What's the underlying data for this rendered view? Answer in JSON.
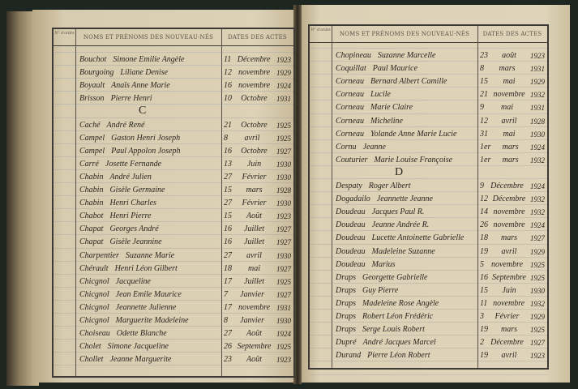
{
  "header": {
    "no_col": "N° d'ordre",
    "names_col": "NOMS ET PRÉNOMS DES NOUVEAU-NÉS",
    "dates_col": "DATES DES ACTES"
  },
  "left_page": {
    "entries": [
      {
        "surname": "Bouchot",
        "given": "Simone Emilie Angèle",
        "day": "11",
        "month": "Décembre",
        "year": "1923"
      },
      {
        "surname": "Bourgoing",
        "given": "Liliane Denise",
        "day": "12",
        "month": "novembre",
        "year": "1929"
      },
      {
        "surname": "Boyault",
        "given": "Anaïs Anne Marie",
        "day": "16",
        "month": "novembre",
        "year": "1924"
      },
      {
        "surname": "Brisson",
        "given": "Pierre Henri",
        "day": "10",
        "month": "Octobre",
        "year": "1931"
      },
      {
        "letter": "C"
      },
      {
        "surname": "Caché",
        "given": "André René",
        "day": "21",
        "month": "Octobre",
        "year": "1925"
      },
      {
        "surname": "Campel",
        "given": "Gaston Henri Joseph",
        "day": "8",
        "month": "avril",
        "year": "1925"
      },
      {
        "surname": "Campel",
        "given": "Paul Appolon Joseph",
        "day": "16",
        "month": "Octobre",
        "year": "1927"
      },
      {
        "surname": "Carré",
        "given": "Josette Fernande",
        "day": "13",
        "month": "Juin",
        "year": "1930"
      },
      {
        "surname": "Chabin",
        "given": "André Julien",
        "day": "27",
        "month": "Février",
        "year": "1930"
      },
      {
        "surname": "Chabin",
        "given": "Gisèle Germaine",
        "day": "15",
        "month": "mars",
        "year": "1928"
      },
      {
        "surname": "Chabin",
        "given": "Henri Charles",
        "day": "27",
        "month": "Février",
        "year": "1930"
      },
      {
        "surname": "Chabot",
        "given": "Henri Pierre",
        "day": "15",
        "month": "Août",
        "year": "1923"
      },
      {
        "surname": "Chapat",
        "given": "Georges André",
        "day": "16",
        "month": "Juillet",
        "year": "1927"
      },
      {
        "surname": "Chapat",
        "given": "Gisèle Jeannine",
        "day": "16",
        "month": "Juillet",
        "year": "1927"
      },
      {
        "surname": "Charpentier",
        "given": "Suzanne Marie",
        "day": "27",
        "month": "avril",
        "year": "1930"
      },
      {
        "surname": "Chérault",
        "given": "Henri Léon Gilbert",
        "day": "18",
        "month": "mai",
        "year": "1927"
      },
      {
        "surname": "Chicgnol",
        "given": "Jacqueline",
        "day": "17",
        "month": "Juillet",
        "year": "1925"
      },
      {
        "surname": "Chicgnol",
        "given": "Jean Emile Maurice",
        "day": "7",
        "month": "Janvier",
        "year": "1927"
      },
      {
        "surname": "Chicgnol",
        "given": "Jeannette Julienne",
        "day": "17",
        "month": "novembre",
        "year": "1931"
      },
      {
        "surname": "Chicgnol",
        "given": "Marguerite Madeleine",
        "day": "8",
        "month": "Janvier",
        "year": "1930"
      },
      {
        "surname": "Choiseau",
        "given": "Odette Blanche",
        "day": "27",
        "month": "Août",
        "year": "1924"
      },
      {
        "surname": "Cholet",
        "given": "Simone Jacqueline",
        "day": "26",
        "month": "Septembre",
        "year": "1925"
      },
      {
        "surname": "Chollet",
        "given": "Jeanne Marguerite",
        "day": "23",
        "month": "Août",
        "year": "1923"
      }
    ]
  },
  "right_page": {
    "entries": [
      {
        "surname": "Chopineau",
        "given": "Suzanne Marcelle",
        "day": "23",
        "month": "août",
        "year": "1923"
      },
      {
        "surname": "Coquillat",
        "given": "Paul Maurice",
        "day": "8",
        "month": "mars",
        "year": "1931"
      },
      {
        "surname": "Corneau",
        "given": "Bernard Albert Camille",
        "day": "15",
        "month": "mai",
        "year": "1929"
      },
      {
        "surname": "Corneau",
        "given": "Lucile",
        "day": "21",
        "month": "novembre",
        "year": "1932"
      },
      {
        "surname": "Corneau",
        "given": "Marie Claire",
        "day": "9",
        "month": "mai",
        "year": "1931"
      },
      {
        "surname": "Corneau",
        "given": "Micheline",
        "day": "12",
        "month": "avril",
        "year": "1928"
      },
      {
        "surname": "Corneau",
        "given": "Yolande Anne Marie Lucie",
        "day": "31",
        "month": "mai",
        "year": "1930"
      },
      {
        "surname": "Cornu",
        "given": "Jeanne",
        "day": "1er",
        "month": "mars",
        "year": "1924"
      },
      {
        "surname": "Couturier",
        "given": "Marie Louise Françoise",
        "day": "1er",
        "month": "mars",
        "year": "1932"
      },
      {
        "letter": "D"
      },
      {
        "surname": "Despaty",
        "given": "Roger Albert",
        "day": "9",
        "month": "Décembre",
        "year": "1924"
      },
      {
        "surname": "Dogadailo",
        "given": "Jeannette Jeanne",
        "day": "12",
        "month": "Décembre",
        "year": "1932"
      },
      {
        "surname": "Doudeau",
        "given": "Jacques Paul R.",
        "day": "14",
        "month": "novembre",
        "year": "1932"
      },
      {
        "surname": "Doudeau",
        "given": "Jeanne Andrée R.",
        "day": "26",
        "month": "novembre",
        "year": "1924"
      },
      {
        "surname": "Doudeau",
        "given": "Lucette Antoinette Gabrielle",
        "day": "18",
        "month": "mars",
        "year": "1927"
      },
      {
        "surname": "Doudeau",
        "given": "Madeleine Suzanne",
        "day": "19",
        "month": "avril",
        "year": "1929"
      },
      {
        "surname": "Doudeau",
        "given": "Marius",
        "day": "5",
        "month": "novembre",
        "year": "1925"
      },
      {
        "surname": "Draps",
        "given": "Georgette Gabrielle",
        "day": "16",
        "month": "Septembre",
        "year": "1925"
      },
      {
        "surname": "Draps",
        "given": "Guy Pierre",
        "day": "15",
        "month": "Juin",
        "year": "1930"
      },
      {
        "surname": "Draps",
        "given": "Madeleine Rose Angèle",
        "day": "11",
        "month": "novembre",
        "year": "1932"
      },
      {
        "surname": "Draps",
        "given": "Robert Léon Frédéric",
        "day": "3",
        "month": "Février",
        "year": "1929"
      },
      {
        "surname": "Draps",
        "given": "Serge Louis Robert",
        "day": "19",
        "month": "mars",
        "year": "1925"
      },
      {
        "surname": "Dupré",
        "given": "André Jacques Marcel",
        "day": "2",
        "month": "Décembre",
        "year": "1927"
      },
      {
        "surname": "Durand",
        "given": "Pierre Léon Robert",
        "day": "19",
        "month": "avril",
        "year": "1923"
      }
    ]
  },
  "colors": {
    "paper": "#dcd0b5",
    "ink": "#2a2520",
    "rule": "#3d3a35",
    "background": "#1e2622"
  }
}
